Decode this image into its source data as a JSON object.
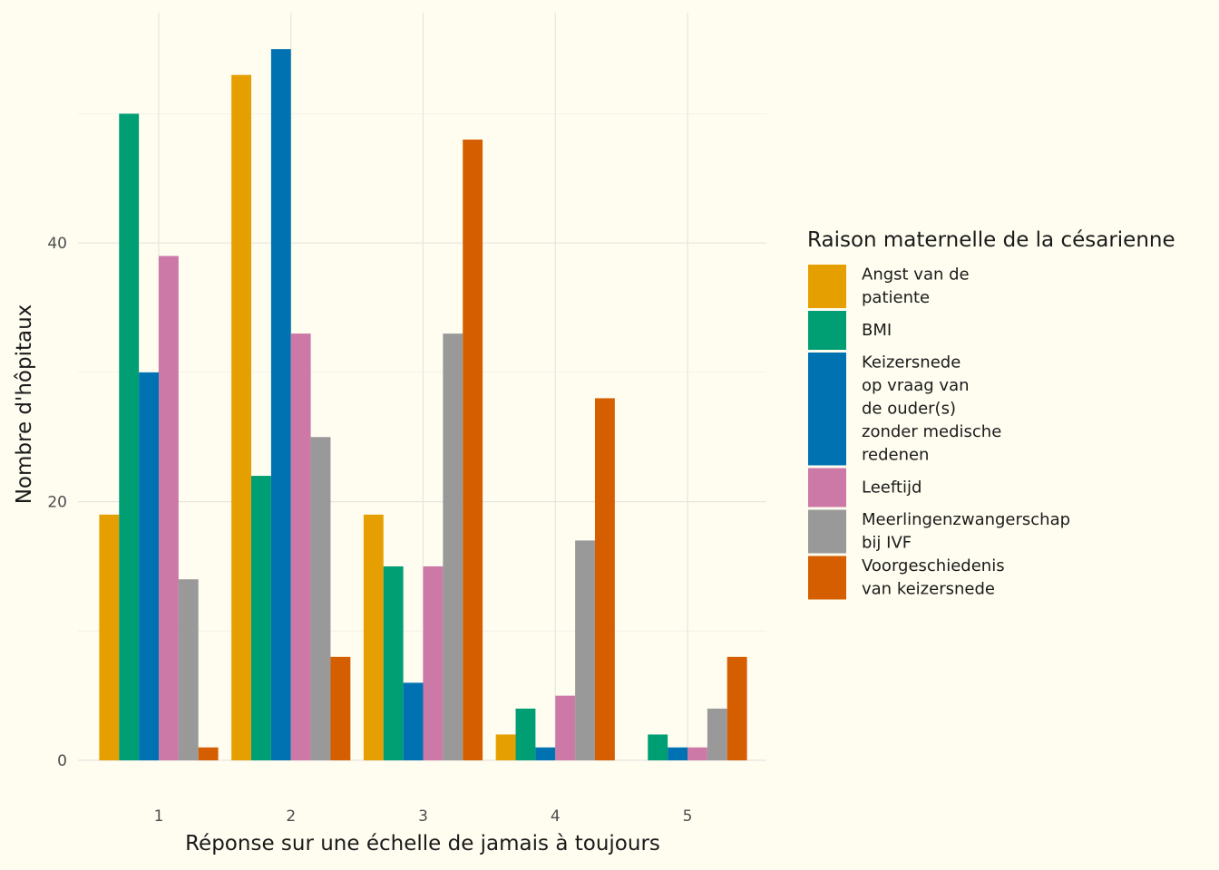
{
  "chart_data": {
    "type": "bar",
    "xlabel": "Réponse sur une échelle de jamais à toujours",
    "ylabel": "Nombre d'hôpitaux",
    "categories": [
      "1",
      "2",
      "3",
      "4",
      "5"
    ],
    "ylim": [
      0,
      55
    ],
    "yticks": [
      0,
      20,
      40
    ],
    "grid": true,
    "legend": {
      "title": "Raison maternelle de la césarienne",
      "position": "right"
    },
    "series": [
      {
        "name": "Angst van de patiente",
        "label_lines": [
          "Angst van de",
          "patiente"
        ],
        "color": "#E69F00",
        "values": [
          19,
          53,
          19,
          2,
          0
        ]
      },
      {
        "name": "BMI",
        "label_lines": [
          "BMI"
        ],
        "color": "#009E73",
        "values": [
          50,
          22,
          15,
          4,
          2
        ]
      },
      {
        "name": "Keizersnede op vraag van de ouder(s) zonder medische redenen",
        "label_lines": [
          "Keizersnede",
          "op vraag van",
          "de ouder(s)",
          "zonder medische",
          "redenen"
        ],
        "color": "#0072B2",
        "values": [
          30,
          55,
          6,
          1,
          1
        ]
      },
      {
        "name": "Leeftijd",
        "label_lines": [
          "Leeftijd"
        ],
        "color": "#CC79A7",
        "values": [
          39,
          33,
          15,
          5,
          1
        ]
      },
      {
        "name": "Meerlingenzwangerschap bij IVF",
        "label_lines": [
          "Meerlingenzwangerschap",
          "bij IVF"
        ],
        "color": "#999999",
        "values": [
          14,
          25,
          33,
          17,
          4
        ]
      },
      {
        "name": "Voorgeschiedenis van keizersnede",
        "label_lines": [
          "Voorgeschiedenis",
          "van keizersnede"
        ],
        "color": "#D55E00",
        "values": [
          1,
          8,
          48,
          28,
          8
        ]
      }
    ]
  }
}
